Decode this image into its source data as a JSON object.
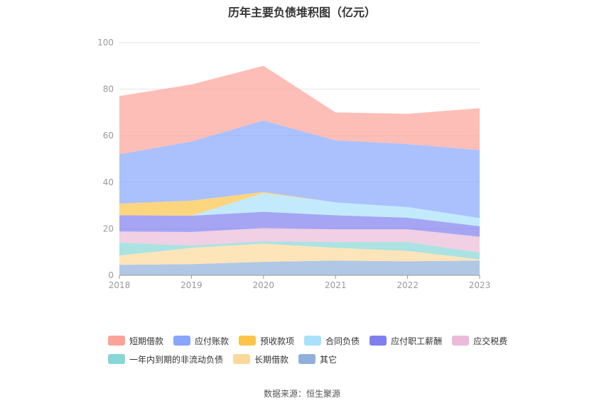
{
  "title": "历年主要负债堆积图（亿元）",
  "source": "数据来源：恒生聚源",
  "chart_data": {
    "type": "area",
    "stacked": true,
    "categories": [
      "2018",
      "2019",
      "2020",
      "2021",
      "2022",
      "2023"
    ],
    "ylim": [
      0,
      100
    ],
    "yticks": [
      0,
      20,
      40,
      60,
      80,
      100
    ],
    "grid": true,
    "legend_position": "bottom",
    "series": [
      {
        "name": "其它",
        "color": "#8fb0db",
        "values": [
          4.5,
          4.8,
          5.8,
          6.3,
          6.0,
          6.3
        ]
      },
      {
        "name": "长期借款",
        "color": "#fdd89b",
        "values": [
          4.0,
          7.0,
          7.8,
          5.5,
          4.5,
          0.5
        ]
      },
      {
        "name": "一年内到期的非流动负债",
        "color": "#86d7d5",
        "values": [
          5.5,
          1.0,
          1.0,
          2.5,
          3.8,
          3.0
        ]
      },
      {
        "name": "应交税费",
        "color": "#ebbad9",
        "values": [
          4.8,
          5.8,
          5.7,
          5.5,
          5.5,
          6.8
        ]
      },
      {
        "name": "应付职工薪酬",
        "color": "#7f7ff0",
        "values": [
          7.0,
          7.0,
          7.0,
          6.0,
          5.0,
          4.5
        ]
      },
      {
        "name": "合同负债",
        "color": "#a8e1fb",
        "values": [
          0,
          0,
          8.0,
          5.5,
          4.5,
          3.5
        ]
      },
      {
        "name": "预收款项",
        "color": "#fbc449",
        "values": [
          5.0,
          6.5,
          0.5,
          0,
          0,
          0
        ]
      },
      {
        "name": "应付账款",
        "color": "#87a6fc",
        "values": [
          21.2,
          25.4,
          30.7,
          26.7,
          27.1,
          29.2
        ]
      },
      {
        "name": "短期借款",
        "color": "#fca399",
        "values": [
          25.0,
          24.5,
          23.5,
          12.0,
          13.0,
          18.0
        ]
      }
    ]
  },
  "legend": {
    "row1": [
      {
        "label": "短期借款",
        "color": "#fca399"
      },
      {
        "label": "应付账款",
        "color": "#87a6fc"
      },
      {
        "label": "预收款项",
        "color": "#fbc449"
      },
      {
        "label": "合同负债",
        "color": "#a8e1fb"
      },
      {
        "label": "应付职工薪酬",
        "color": "#7f7ff0"
      },
      {
        "label": "应交税费",
        "color": "#ebbad9"
      }
    ],
    "row2": [
      {
        "label": "一年内到期的非流动负债",
        "color": "#86d7d5"
      },
      {
        "label": "长期借款",
        "color": "#fdd89b"
      },
      {
        "label": "其它",
        "color": "#8fb0db"
      }
    ]
  }
}
